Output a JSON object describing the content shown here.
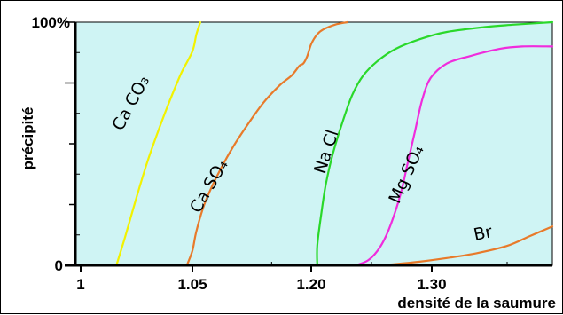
{
  "chart_data": {
    "type": "line",
    "title": "",
    "xlabel": "densité de la saumure",
    "ylabel": "précipité",
    "x_tick_labels": [
      "1",
      "1.05",
      "1.20",
      "1.30"
    ],
    "y_tick_labels": [
      "0",
      "100%"
    ],
    "xlim": [
      1.0,
      1.38
    ],
    "ylim": [
      0,
      100
    ],
    "colors": {
      "plot_background": "#cff4f4",
      "CaCO3": "#f2f200",
      "CaSO4": "#e87a2a",
      "NaCl": "#2ad82a",
      "MgSO4": "#f02cdc",
      "Br": "#e87a2a"
    },
    "series": [
      {
        "key": "CaCO3",
        "label": "Ca CO₃",
        "points": [
          [
            1.016,
            0
          ],
          [
            1.02,
            12
          ],
          [
            1.025,
            28
          ],
          [
            1.03,
            43
          ],
          [
            1.035,
            56
          ],
          [
            1.04,
            68
          ],
          [
            1.045,
            79
          ],
          [
            1.05,
            88
          ],
          [
            1.055,
            95
          ],
          [
            1.06,
            100
          ]
        ]
      },
      {
        "key": "CaSO4",
        "label": "Ca SO₄",
        "points": [
          [
            1.0475,
            0
          ],
          [
            1.05,
            6
          ],
          [
            1.055,
            14
          ],
          [
            1.065,
            25
          ],
          [
            1.08,
            36
          ],
          [
            1.1,
            48
          ],
          [
            1.12,
            58
          ],
          [
            1.14,
            67
          ],
          [
            1.16,
            74
          ],
          [
            1.175,
            78
          ],
          [
            1.185,
            82
          ],
          [
            1.19,
            83
          ],
          [
            1.195,
            86
          ],
          [
            1.2,
            91
          ],
          [
            1.205,
            95
          ],
          [
            1.21,
            97
          ],
          [
            1.22,
            99
          ],
          [
            1.23,
            100
          ]
        ]
      },
      {
        "key": "NaCl",
        "label": "Na Cl",
        "points": [
          [
            1.205,
            0
          ],
          [
            1.205,
            8
          ],
          [
            1.208,
            20
          ],
          [
            1.212,
            33
          ],
          [
            1.218,
            46
          ],
          [
            1.226,
            59
          ],
          [
            1.234,
            70
          ],
          [
            1.243,
            78
          ],
          [
            1.255,
            84
          ],
          [
            1.27,
            89
          ],
          [
            1.29,
            93
          ],
          [
            1.31,
            96
          ],
          [
            1.335,
            98
          ],
          [
            1.355,
            99
          ],
          [
            1.38,
            100
          ]
        ]
      },
      {
        "key": "MgSO4",
        "label": "Mg SO₄",
        "points": [
          [
            1.237,
            0
          ],
          [
            1.247,
            2
          ],
          [
            1.255,
            6
          ],
          [
            1.262,
            12
          ],
          [
            1.269,
            21
          ],
          [
            1.275,
            31
          ],
          [
            1.28,
            42
          ],
          [
            1.286,
            55
          ],
          [
            1.292,
            68
          ],
          [
            1.299,
            77
          ],
          [
            1.31,
            83
          ],
          [
            1.325,
            86
          ],
          [
            1.345,
            89
          ],
          [
            1.36,
            90
          ],
          [
            1.38,
            90
          ]
        ]
      },
      {
        "key": "Br",
        "label": "Br",
        "points": [
          [
            1.255,
            0
          ],
          [
            1.27,
            0.5
          ],
          [
            1.29,
            1.5
          ],
          [
            1.31,
            3
          ],
          [
            1.33,
            5
          ],
          [
            1.35,
            8
          ],
          [
            1.365,
            12
          ],
          [
            1.38,
            16
          ]
        ]
      }
    ]
  }
}
